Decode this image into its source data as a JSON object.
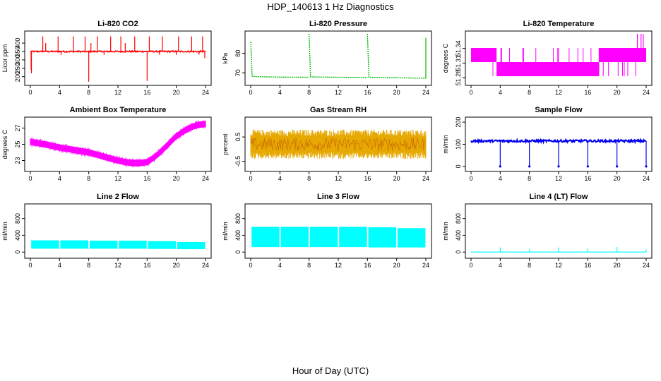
{
  "figure": {
    "title": "HDP_140613  1 Hz Diagnostics",
    "x_caption": "Hour of Day (UTC)"
  },
  "chart_data": [
    {
      "type": "line",
      "title": "Li-820 CO2",
      "ylabel": "Licor ppm",
      "color": "#ff0000",
      "xlim": [
        0,
        24
      ],
      "ylim": [
        165,
        455
      ],
      "x_ticks": [
        0,
        4,
        8,
        12,
        16,
        20,
        24
      ],
      "y_ticks": [
        200,
        250,
        300,
        350,
        400
      ],
      "series": [
        {
          "baseline": 350,
          "noise": 4,
          "spikes": [
            {
              "x": 0.1,
              "y": 240
            },
            {
              "x": 0.15,
              "y": 220
            },
            {
              "x": 1.7,
              "y": 440
            },
            {
              "x": 2.1,
              "y": 400
            },
            {
              "x": 3.8,
              "y": 440
            },
            {
              "x": 4.2,
              "y": 330
            },
            {
              "x": 5.9,
              "y": 440
            },
            {
              "x": 7.5,
              "y": 440
            },
            {
              "x": 8.0,
              "y": 170
            },
            {
              "x": 8.3,
              "y": 400
            },
            {
              "x": 9.2,
              "y": 440
            },
            {
              "x": 10.1,
              "y": 330
            },
            {
              "x": 11.0,
              "y": 440
            },
            {
              "x": 12.4,
              "y": 440
            },
            {
              "x": 13.0,
              "y": 400
            },
            {
              "x": 14.3,
              "y": 440
            },
            {
              "x": 16.0,
              "y": 175
            },
            {
              "x": 16.3,
              "y": 440
            },
            {
              "x": 17.7,
              "y": 330
            },
            {
              "x": 18.1,
              "y": 440
            },
            {
              "x": 20.0,
              "y": 330
            },
            {
              "x": 20.3,
              "y": 440
            },
            {
              "x": 22.1,
              "y": 440
            },
            {
              "x": 23.1,
              "y": 330
            },
            {
              "x": 23.6,
              "y": 440
            },
            {
              "x": 23.9,
              "y": 310
            }
          ]
        }
      ]
    },
    {
      "type": "line",
      "title": "Li-820 Pressure",
      "ylabel": "kPa",
      "color": "#00bb00",
      "xlim": [
        0,
        24
      ],
      "ylim": [
        65,
        90
      ],
      "x_ticks": [
        0,
        4,
        8,
        12,
        16,
        20,
        24
      ],
      "y_ticks": [
        70,
        80
      ],
      "series": [
        {
          "segments": [
            {
              "x": [
                0.0,
                0.2,
                1.0,
                4.0,
                8.0
              ],
              "y": [
                86,
                68.2,
                68.0,
                67.8,
                67.7
              ]
            },
            {
              "x": [
                8.0,
                8.2,
                12.0,
                16.0
              ],
              "y": [
                90,
                67.9,
                67.7,
                67.6
              ]
            },
            {
              "x": [
                16.0,
                16.2,
                20.0,
                24.0
              ],
              "y": [
                90,
                67.7,
                67.5,
                67.2
              ]
            }
          ],
          "spikes": [
            {
              "x": 24.0,
              "y": 88
            }
          ]
        }
      ]
    },
    {
      "type": "line",
      "title": "Li-820 Temperature",
      "ylabel": "degrees C",
      "color": "#ff00ff",
      "xlim": [
        0,
        24
      ],
      "ylim": [
        51.27,
        51.37
      ],
      "x_ticks": [
        0,
        4,
        8,
        12,
        16,
        20,
        24
      ],
      "y_ticks": [
        51.28,
        51.31,
        51.34
      ],
      "y_tick_labels": [
        "51.28",
        "51.31",
        "51.34"
      ],
      "series": [
        {
          "levels": [
            51.283,
            51.312,
            51.341
          ],
          "band_low": [
            {
              "x": [
                0,
                3.5
              ],
              "range": [
                51.312,
                51.341
              ]
            },
            {
              "x": [
                3.5,
                17.5
              ],
              "range": [
                51.283,
                51.312
              ]
            },
            {
              "x": [
                17.5,
                24
              ],
              "range": [
                51.312,
                51.341
              ]
            }
          ],
          "spikes": [
            {
              "x": 22.8,
              "y": 51.37
            },
            {
              "x": 23.3,
              "y": 51.37
            },
            {
              "x": 23.6,
              "y": 51.37
            }
          ]
        }
      ]
    },
    {
      "type": "line",
      "title": "Ambient Box Temperature",
      "ylabel": "degrees C",
      "color": "#ff00ff",
      "xlim": [
        0,
        24
      ],
      "ylim": [
        22.0,
        28.0
      ],
      "x_ticks": [
        0,
        4,
        8,
        12,
        16,
        20,
        24
      ],
      "y_ticks": [
        23,
        25,
        27
      ],
      "series": [
        {
          "x": [
            0,
            2,
            4,
            6,
            8,
            10,
            12,
            13,
            14,
            15,
            16,
            17,
            18,
            19,
            20,
            21,
            22,
            23,
            24
          ],
          "y": [
            25.3,
            25.0,
            24.6,
            24.3,
            24.0,
            23.5,
            23.0,
            22.8,
            22.7,
            22.7,
            22.8,
            23.4,
            24.2,
            25.1,
            26.0,
            26.6,
            27.1,
            27.4,
            27.5
          ],
          "band": 0.35
        }
      ]
    },
    {
      "type": "line",
      "title": "Gas Stream RH",
      "ylabel": "percent",
      "color": "#e6a800",
      "xlim": [
        0,
        24
      ],
      "ylim": [
        -0.8,
        1.2
      ],
      "x_ticks": [
        0,
        4,
        8,
        12,
        16,
        20,
        24
      ],
      "y_ticks": [
        -0.5,
        0.5
      ],
      "series": [
        {
          "center": 0.2,
          "amplitude": 0.55,
          "extreme_low": -0.7,
          "extreme_high": 1.0
        }
      ]
    },
    {
      "type": "line",
      "title": "Sample Flow",
      "ylabel": "ml/min",
      "color": "#0000ee",
      "xlim": [
        0,
        24
      ],
      "ylim": [
        -10,
        210
      ],
      "x_ticks": [
        0,
        4,
        8,
        12,
        16,
        20,
        24
      ],
      "y_ticks": [
        0,
        100,
        200
      ],
      "series": [
        {
          "baseline": 115,
          "noise": 5,
          "dips": [
            4,
            8,
            12,
            16,
            20,
            24
          ],
          "dip_value": 0
        }
      ]
    },
    {
      "type": "area",
      "title": "Line 2 Flow",
      "ylabel": "ml/min",
      "color": "#00ffff",
      "xlim": [
        0,
        24
      ],
      "ylim": [
        -80,
        1080
      ],
      "x_ticks": [
        0,
        4,
        8,
        12,
        16,
        20,
        24
      ],
      "y_ticks": [
        0,
        400,
        800
      ],
      "series": [
        {
          "segments": [
            {
              "x": [
                0.0,
                4.0
              ],
              "low": 80,
              "high": 280
            },
            {
              "x": [
                4.0,
                8.0
              ],
              "low": 80,
              "high": 280
            },
            {
              "x": [
                8.0,
                12.0
              ],
              "low": 80,
              "high": 270
            },
            {
              "x": [
                12.0,
                16.0
              ],
              "low": 80,
              "high": 270
            },
            {
              "x": [
                16.0,
                20.0
              ],
              "low": 75,
              "high": 260
            },
            {
              "x": [
                20.0,
                24.0
              ],
              "low": 70,
              "high": 240
            }
          ]
        }
      ]
    },
    {
      "type": "area",
      "title": "Line 3 Flow",
      "ylabel": "ml/min",
      "color": "#00ffff",
      "xlim": [
        0,
        24
      ],
      "ylim": [
        -80,
        1080
      ],
      "x_ticks": [
        0,
        4,
        8,
        12,
        16,
        20,
        24
      ],
      "y_ticks": [
        0,
        400,
        800
      ],
      "series": [
        {
          "segments": [
            {
              "x": [
                0.0,
                4.0
              ],
              "low": 120,
              "high": 600
            },
            {
              "x": [
                4.0,
                8.0
              ],
              "low": 120,
              "high": 600
            },
            {
              "x": [
                8.0,
                12.0
              ],
              "low": 120,
              "high": 600
            },
            {
              "x": [
                12.0,
                16.0
              ],
              "low": 120,
              "high": 600
            },
            {
              "x": [
                16.0,
                20.0
              ],
              "low": 110,
              "high": 590
            },
            {
              "x": [
                20.0,
                24.0
              ],
              "low": 110,
              "high": 570
            }
          ]
        }
      ]
    },
    {
      "type": "line",
      "title": "Line 4 (LT) Flow",
      "ylabel": "ml/min",
      "color": "#00ffff",
      "xlim": [
        0,
        24
      ],
      "ylim": [
        -80,
        1080
      ],
      "x_ticks": [
        0,
        4,
        8,
        12,
        16,
        20,
        24
      ],
      "y_ticks": [
        0,
        400,
        800
      ],
      "series": [
        {
          "baseline": 0,
          "spikes": [
            {
              "x": 4.0,
              "y": 110
            },
            {
              "x": 8.0,
              "y": 70
            },
            {
              "x": 12.0,
              "y": 110
            },
            {
              "x": 16.0,
              "y": 80
            },
            {
              "x": 20.0,
              "y": 120
            },
            {
              "x": 24.0,
              "y": 60
            }
          ]
        }
      ]
    }
  ]
}
